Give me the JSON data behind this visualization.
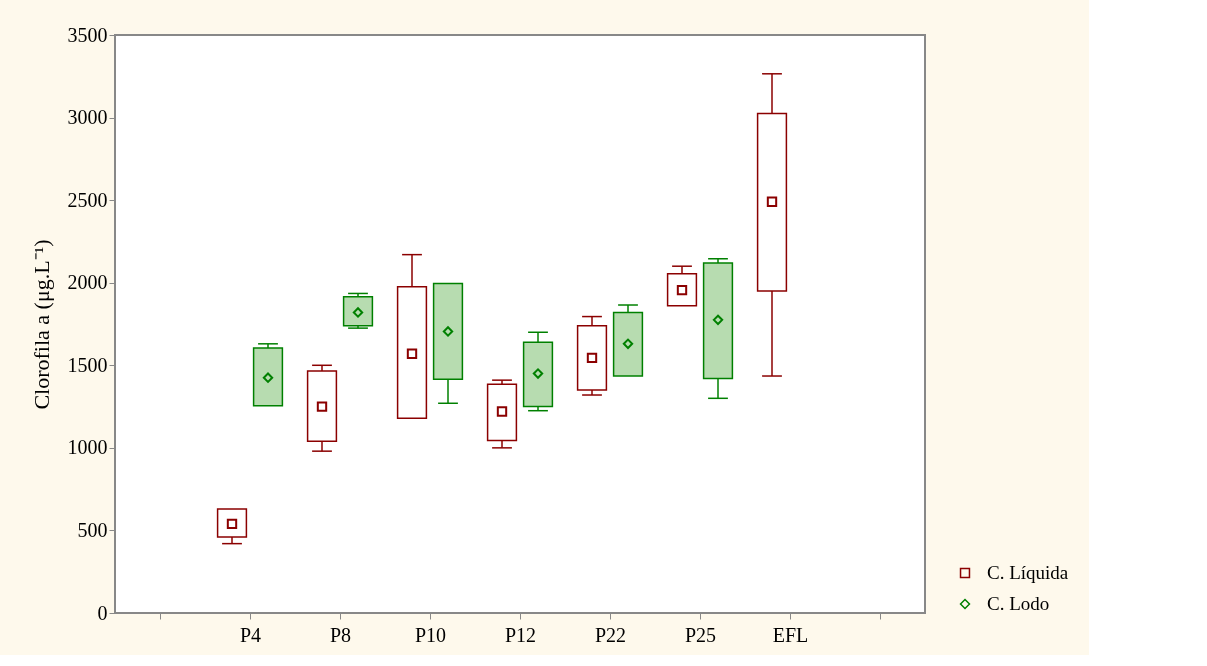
{
  "chart_data": {
    "type": "box",
    "ylabel": "Clorofila a (μg.L⁻¹)",
    "categories": [
      null,
      "P4",
      "P8",
      "P10",
      "P12",
      "P22",
      "P25",
      "EFL",
      null
    ],
    "ylim": [
      0,
      3500
    ],
    "yticks": [
      0,
      500,
      1000,
      1500,
      2000,
      2500,
      3000,
      3500
    ],
    "grid": false,
    "legend": "bottom right",
    "series": [
      {
        "name": "C. Líquida",
        "color": "#8b0000",
        "marker": "square",
        "boxes": [
          null,
          {
            "low": 420,
            "q1": 460,
            "median": 540,
            "q3": 630,
            "high": 630
          },
          {
            "low": 980,
            "q1": 1040,
            "median": 1250,
            "q3": 1465,
            "high": 1500
          },
          {
            "low": 1180,
            "q1": 1180,
            "median": 1570,
            "q3": 1975,
            "high": 2170
          },
          {
            "low": 1000,
            "q1": 1045,
            "median": 1220,
            "q3": 1385,
            "high": 1410
          },
          {
            "low": 1320,
            "q1": 1350,
            "median": 1545,
            "q3": 1740,
            "high": 1795
          },
          {
            "low": 1860,
            "q1": 1860,
            "median": 1955,
            "q3": 2055,
            "high": 2100
          },
          {
            "low": 1435,
            "q1": 1950,
            "median": 2490,
            "q3": 3025,
            "high": 3265
          },
          null
        ]
      },
      {
        "name": "C. Lodo",
        "color": "#008000",
        "marker": "diamond",
        "boxes": [
          null,
          {
            "low": 1255,
            "q1": 1255,
            "median": 1425,
            "q3": 1605,
            "high": 1630
          },
          {
            "low": 1725,
            "q1": 1740,
            "median": 1820,
            "q3": 1915,
            "high": 1935
          },
          {
            "low": 1270,
            "q1": 1415,
            "median": 1705,
            "q3": 1995,
            "high": 1995
          },
          {
            "low": 1225,
            "q1": 1250,
            "median": 1450,
            "q3": 1640,
            "high": 1700
          },
          {
            "low": 1435,
            "q1": 1435,
            "median": 1630,
            "q3": 1820,
            "high": 1865
          },
          {
            "low": 1300,
            "q1": 1420,
            "median": 1775,
            "q3": 2120,
            "high": 2145
          },
          null,
          null
        ]
      }
    ]
  }
}
